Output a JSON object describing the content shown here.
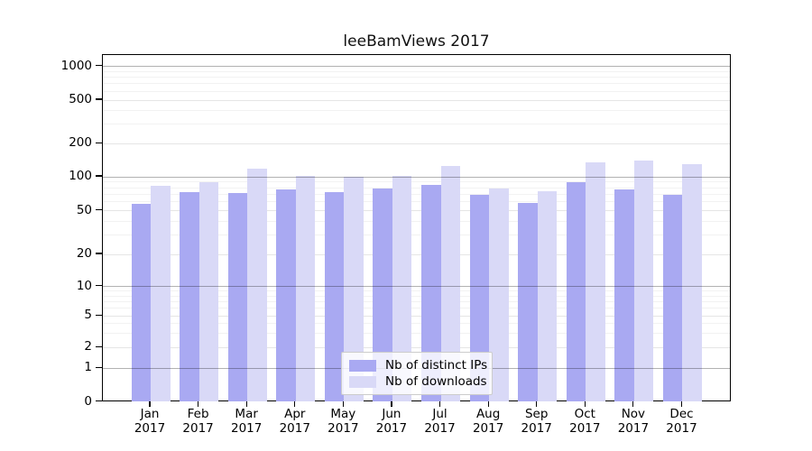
{
  "chart_data": {
    "type": "bar",
    "title": "leeBamViews 2017",
    "categories": [
      "Jan",
      "Feb",
      "Mar",
      "Apr",
      "May",
      "Jun",
      "Jul",
      "Aug",
      "Sep",
      "Oct",
      "Nov",
      "Dec"
    ],
    "year": "2017",
    "series": [
      {
        "name": "Nb of distinct IPs",
        "key": "distinct-ips",
        "color": "#a9a9f2",
        "values": [
          58,
          73,
          72,
          78,
          73,
          79,
          85,
          69,
          59,
          90,
          77,
          69
        ]
      },
      {
        "name": "Nb of downloads",
        "key": "downloads",
        "color": "#d9d9f7",
        "values": [
          83,
          90,
          119,
          102,
          100,
          102,
          125,
          79,
          75,
          135,
          140,
          130
        ]
      }
    ],
    "yticks": [
      0,
      1,
      2,
      5,
      10,
      20,
      50,
      100,
      200,
      500,
      1000
    ],
    "yaxis_scale": "symlog",
    "ylim": [
      0,
      1300
    ],
    "grid": true,
    "legend_position": "lower-center"
  }
}
